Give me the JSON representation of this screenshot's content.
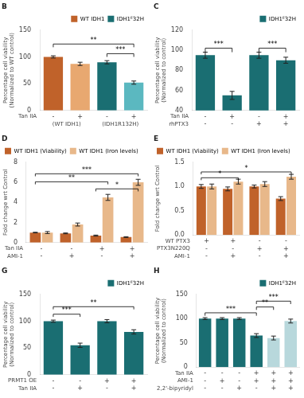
{
  "chart_data": [
    {
      "type": "bar",
      "title": "B",
      "ylabel": "Percentage cell viability\n(Normalized to WT control)",
      "categories": [
        [
          "-"
        ],
        [
          "+"
        ],
        [
          "-"
        ],
        [
          "+"
        ]
      ],
      "category_rows": [
        "Tan IIA"
      ],
      "groups": [
        {
          "name": "(WT IDH1)",
          "size": 2
        },
        {
          "name": "(IDH1R132H)",
          "size": 2
        }
      ],
      "series": [
        {
          "values": [
            100,
            87,
            90,
            52
          ],
          "errors": [
            2,
            3,
            3,
            3
          ],
          "colors": [
            "#C0622A",
            "#E8A870",
            "#1A6E72",
            "#5BB8C0"
          ]
        }
      ],
      "legend": "upper right",
      "legend_items": [
        {
          "name": "WT IDH1",
          "color": "#C0622A"
        },
        {
          "name": "IDH1ᴱ32H",
          "color": "#1A6E72"
        }
      ],
      "ylim": [
        0,
        150
      ],
      "yticks": [
        0,
        50,
        100,
        150
      ],
      "grid": false,
      "brackets": [
        {
          "text": "***",
          "start": [
            2,
            0
          ],
          "end": [
            3,
            0
          ],
          "y_low": 100,
          "y_high": 106
        },
        {
          "text": "**",
          "start": [
            0,
            0
          ],
          "end": [
            3,
            0
          ],
          "y_low": 118,
          "y_high": 124
        }
      ]
    },
    {
      "type": "bar",
      "title": "C",
      "ylabel": "Percentage cell viability\n(Normalized to control)",
      "categories": [
        [
          "-",
          "-"
        ],
        [
          "+",
          "-"
        ],
        [
          "-",
          "+"
        ],
        [
          "+",
          "+"
        ]
      ],
      "category_rows": [
        "Tan IIA",
        "rhPTX3"
      ],
      "series": [
        {
          "values": [
            95,
            55,
            95,
            90
          ],
          "errors": [
            3,
            4,
            3,
            3
          ],
          "color": "#1A6E72"
        }
      ],
      "legend": "upper right",
      "legend_items": [
        {
          "name": "IDH1ᴱ32H",
          "color": "#1A6E72"
        }
      ],
      "ylim": [
        40,
        120
      ],
      "yticks": [
        40,
        60,
        80,
        100,
        120
      ],
      "grid": false,
      "brackets": [
        {
          "text": "***",
          "start": [
            0,
            0
          ],
          "end": [
            1,
            0
          ],
          "y_low": 98,
          "y_high": 102
        },
        {
          "text": "***",
          "start": [
            2,
            0
          ],
          "end": [
            3,
            0
          ],
          "y_low": 98,
          "y_high": 102
        }
      ]
    },
    {
      "type": "bar",
      "title": "D",
      "ylabel": "Fold change wrt Control",
      "categories": [
        [
          "-",
          "-"
        ],
        [
          "-",
          "+"
        ],
        [
          "+",
          "-"
        ],
        [
          "+",
          "+"
        ]
      ],
      "category_rows": [
        "Tan IIA",
        "AMI-1"
      ],
      "series": [
        {
          "name": "WT IDH1 (Viability)",
          "color": "#C0622A",
          "values": [
            1.0,
            0.92,
            0.7,
            0.55
          ],
          "errors": [
            0.03,
            0.04,
            0.05,
            0.04
          ]
        },
        {
          "name": "WT IDH1 (Iron levels)",
          "color": "#E8B88A",
          "values": [
            1.0,
            1.8,
            4.5,
            6.0
          ],
          "errors": [
            0.1,
            0.15,
            0.3,
            0.3
          ]
        }
      ],
      "legend": "upper left",
      "ylim": [
        0,
        8
      ],
      "yticks": [
        0,
        2,
        4,
        6,
        8
      ],
      "grid": false,
      "brackets": [
        {
          "text": "***",
          "start": [
            0,
            0
          ],
          "end": [
            3,
            1
          ],
          "y_low": 6.6,
          "y_high": 6.85
        },
        {
          "text": "**",
          "start": [
            0,
            0
          ],
          "end": [
            2,
            1
          ],
          "y_low": 5.8,
          "y_high": 6.05
        },
        {
          "text": "*",
          "start": [
            2,
            0
          ],
          "end": [
            3,
            1
          ],
          "y_low": 5.1,
          "y_high": 5.35
        }
      ]
    },
    {
      "type": "bar",
      "title": "E",
      "ylabel": "Fold change wrt Control",
      "categories": [
        [
          "+",
          "-",
          "-"
        ],
        [
          "+",
          "-",
          "+"
        ],
        [
          "-",
          "+",
          "-"
        ],
        [
          "-",
          "+",
          "+"
        ]
      ],
      "category_rows": [
        "WT PTX3",
        "PTX3N220Q",
        "AMI-1"
      ],
      "series": [
        {
          "name": "WT IDH1 (Viability)",
          "color": "#C0622A",
          "values": [
            1.0,
            0.95,
            1.0,
            0.75
          ],
          "errors": [
            0.04,
            0.04,
            0.03,
            0.04
          ]
        },
        {
          "name": "WT IDH1 (Iron levels)",
          "color": "#E8B88A",
          "values": [
            1.0,
            1.1,
            1.05,
            1.2
          ],
          "errors": [
            0.05,
            0.05,
            0.05,
            0.05
          ]
        }
      ],
      "legend": "upper left",
      "ylim": [
        0,
        1.5
      ],
      "yticks": [
        {
          "value": 0,
          "label": "0.0"
        },
        0.5,
        {
          "value": 1,
          "label": "1.0"
        },
        1.5
      ],
      "grid": false,
      "brackets": [
        {
          "text": "*",
          "start": [
            0,
            0
          ],
          "end": [
            1,
            1
          ],
          "y_low": 1.13,
          "y_high": 1.18
        },
        {
          "text": "*",
          "start": [
            0,
            0
          ],
          "end": [
            3,
            1
          ],
          "y_low": 1.25,
          "y_high": 1.3
        }
      ]
    },
    {
      "type": "bar",
      "title": "G",
      "ylabel": "Percentage cell viability\n(Normalized to control)",
      "categories": [
        [
          "-",
          "-"
        ],
        [
          "-",
          "+"
        ],
        [
          "+",
          "-"
        ],
        [
          "+",
          "+"
        ]
      ],
      "category_rows": [
        "PRMT1 OE",
        "Tan IIA"
      ],
      "series": [
        {
          "values": [
            100,
            55,
            100,
            80
          ],
          "errors": [
            2,
            4,
            3,
            4
          ],
          "color": "#1A6E72"
        }
      ],
      "legend": "upper right",
      "legend_items": [
        {
          "name": "IDH1ᴱ32H",
          "color": "#1A6E72"
        }
      ],
      "ylim": [
        0,
        150
      ],
      "yticks": [
        0,
        50,
        100,
        150
      ],
      "grid": false,
      "brackets": [
        {
          "text": "***",
          "start": [
            0,
            0
          ],
          "end": [
            1,
            0
          ],
          "y_low": 108,
          "y_high": 113
        },
        {
          "text": "**",
          "start": [
            0,
            0
          ],
          "end": [
            3,
            0
          ],
          "y_low": 122,
          "y_high": 127
        }
      ]
    },
    {
      "type": "bar",
      "title": "H",
      "ylabel": "Percentage cell viability\n(Normalized to control)",
      "categories": [
        [
          "-",
          "-",
          "-"
        ],
        [
          "-",
          "+",
          "-"
        ],
        [
          "-",
          "-",
          "+"
        ],
        [
          "+",
          "+",
          "-"
        ],
        [
          "+",
          "+",
          "+"
        ],
        [
          "+",
          "+",
          "+"
        ]
      ],
      "category_rows": [
        "Tan IIA",
        "AMI-1",
        "2,2'-bipyridyl"
      ],
      "series": [
        {
          "values": [
            100,
            100,
            100,
            65,
            60,
            95
          ],
          "errors": [
            2,
            2,
            2,
            4,
            4,
            4
          ],
          "colors": [
            "#1A6E72",
            "#1A6E72",
            "#1A6E72",
            "#1A6E72",
            "#B8D8DC",
            "#B8D8DC"
          ]
        }
      ],
      "legend": "upper right",
      "legend_items": [
        {
          "name": "IDH1ᴱ32H",
          "color": "#1A6E72"
        }
      ],
      "ylim": [
        0,
        150
      ],
      "yticks": [
        0,
        50,
        100,
        150
      ],
      "grid": false,
      "brackets": [
        {
          "text": "***",
          "start": [
            0,
            0
          ],
          "end": [
            3,
            0
          ],
          "y_low": 106,
          "y_high": 112
        },
        {
          "text": "**",
          "start": [
            3,
            0
          ],
          "end": [
            4,
            0
          ],
          "y_low": 118,
          "y_high": 124
        },
        {
          "text": "***",
          "start": [
            3,
            0
          ],
          "end": [
            5,
            0
          ],
          "y_low": 130,
          "y_high": 136
        }
      ]
    }
  ]
}
